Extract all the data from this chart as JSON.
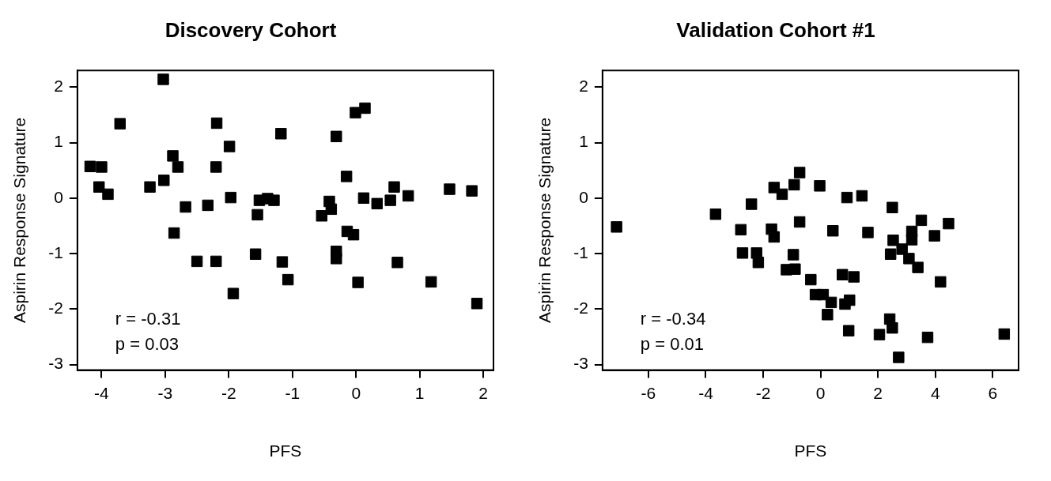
{
  "chart_data": [
    {
      "type": "scatter",
      "title": "Discovery Cohort",
      "xlabel": "PFS",
      "ylabel": "Aspirin Response Signature",
      "marker": "square",
      "grid": false,
      "x": [
        -3.03,
        -3.71,
        -2.19,
        -1.18,
        -1.99,
        -4.18,
        -4.0,
        -2.88,
        -2.8,
        -2.2,
        -4.04,
        -3.9,
        -3.24,
        -3.02,
        -2.68,
        -2.33,
        -1.97,
        -2.86,
        -2.5,
        -2.2,
        -1.93,
        -1.58,
        -1.16,
        -1.07,
        -1.55,
        -1.52,
        -1.39,
        -1.29,
        -0.01,
        0.14,
        -0.31,
        -0.15,
        0.6,
        1.47,
        1.82,
        0.12,
        0.33,
        0.54,
        0.82,
        -0.42,
        -0.39,
        -0.54,
        -0.14,
        -0.04,
        -0.31,
        -0.31,
        0.65,
        0.03,
        1.18,
        1.9
      ],
      "series": [
        {
          "color": "#000000",
          "values": [
            2.14,
            1.34,
            1.35,
            1.16,
            0.93,
            0.57,
            0.56,
            0.76,
            0.56,
            0.56,
            0.2,
            0.07,
            0.2,
            0.32,
            -0.16,
            -0.13,
            0.01,
            -0.63,
            -1.14,
            -1.14,
            -1.72,
            -1.01,
            -1.15,
            -1.47,
            -0.3,
            -0.04,
            -0.01,
            -0.04,
            1.54,
            1.62,
            1.11,
            0.39,
            0.2,
            0.16,
            0.13,
            0.0,
            -0.1,
            -0.04,
            0.04,
            -0.06,
            -0.2,
            -0.32,
            -0.6,
            -0.66,
            -0.96,
            -1.09,
            -1.16,
            -1.52,
            -1.51,
            -1.9
          ]
        }
      ],
      "xlim": [
        -4.38,
        2.16
      ],
      "xticks": [
        -4,
        -3,
        -2,
        -1,
        0,
        1,
        2
      ],
      "ylim": [
        -3.1,
        2.3
      ],
      "yticks": [
        -3,
        -2,
        -1,
        0,
        1,
        2
      ],
      "annotations": [
        "r = -0.31",
        "p = 0.03"
      ]
    },
    {
      "type": "scatter",
      "title": "Validation Cohort #1",
      "xlabel": "PFS",
      "ylabel": "Aspirin Response Signature",
      "marker": "square",
      "grid": false,
      "x": [
        -7.11,
        -3.66,
        -2.41,
        -2.78,
        -2.72,
        -2.23,
        -2.17,
        -1.71,
        -1.62,
        -1.62,
        -1.34,
        -0.73,
        -0.95,
        -0.92,
        -0.03,
        0.92,
        1.44,
        2.5,
        -0.73,
        0.43,
        1.65,
        3.51,
        4.46,
        3.18,
        3.18,
        3.97,
        2.53,
        2.84,
        2.44,
        3.08,
        3.39,
        4.18,
        -1.19,
        -0.89,
        -0.34,
        -0.18,
        0.09,
        0.37,
        0.76,
        1.16,
        0.85,
        1.01,
        0.24,
        0.98,
        2.41,
        2.5,
        2.05,
        3.73,
        2.72,
        6.4
      ],
      "series": [
        {
          "color": "#000000",
          "values": [
            -0.52,
            -0.29,
            -0.11,
            -0.57,
            -0.99,
            -0.99,
            -1.16,
            -0.56,
            -0.7,
            0.19,
            0.07,
            0.46,
            -1.02,
            0.24,
            0.22,
            0.01,
            0.04,
            -0.17,
            -0.43,
            -0.59,
            -0.62,
            -0.4,
            -0.46,
            -0.6,
            -0.75,
            -0.68,
            -0.76,
            -0.92,
            -1.01,
            -1.09,
            -1.25,
            -1.51,
            -1.29,
            -1.28,
            -1.47,
            -1.74,
            -1.74,
            -1.88,
            -1.38,
            -1.42,
            -1.91,
            -1.84,
            -2.1,
            -2.39,
            -2.18,
            -2.34,
            -2.46,
            -2.51,
            -2.87,
            -2.45
          ]
        }
      ],
      "xlim": [
        -7.6,
        6.9
      ],
      "xticks": [
        -6,
        -4,
        -2,
        0,
        2,
        4,
        6
      ],
      "ylim": [
        -3.1,
        2.3
      ],
      "yticks": [
        -3,
        -2,
        -1,
        0,
        1,
        2
      ],
      "annotations": [
        "r = -0.34",
        "p = 0.01"
      ]
    }
  ]
}
